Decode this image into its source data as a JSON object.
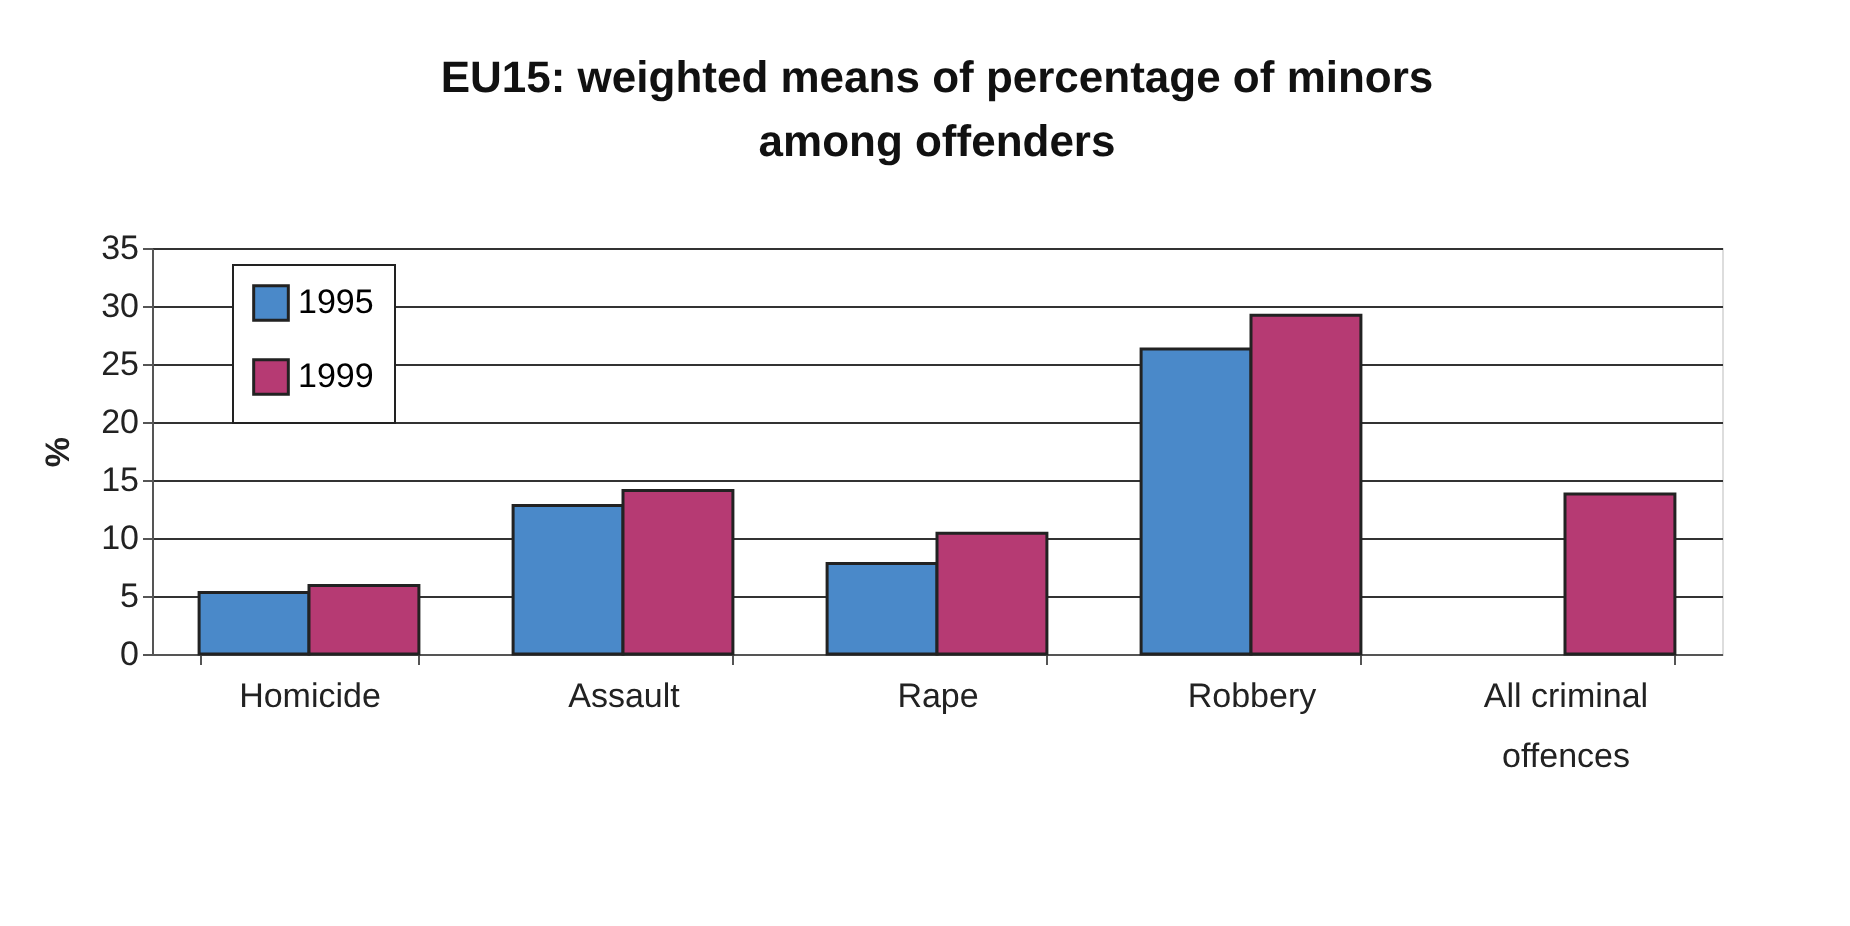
{
  "chart_data": {
    "type": "bar",
    "title": "EU15: weighted means of percentage of minors among offenders",
    "categories": [
      "Homicide",
      "Assault",
      "Rape",
      "Robbery",
      "All criminal offences"
    ],
    "series": [
      {
        "name": "1995",
        "color": "#4a89c9",
        "values": [
          5.3,
          12.8,
          7.8,
          26.3,
          null
        ]
      },
      {
        "name": "1999",
        "color": "#b63a73",
        "values": [
          5.9,
          14.1,
          10.4,
          29.2,
          13.8
        ]
      }
    ],
    "ylabel": "%",
    "ylim": [
      0,
      35
    ],
    "yticks": [
      0,
      5,
      10,
      15,
      20,
      25,
      30,
      35
    ],
    "grid": "y",
    "legend": "top left"
  }
}
